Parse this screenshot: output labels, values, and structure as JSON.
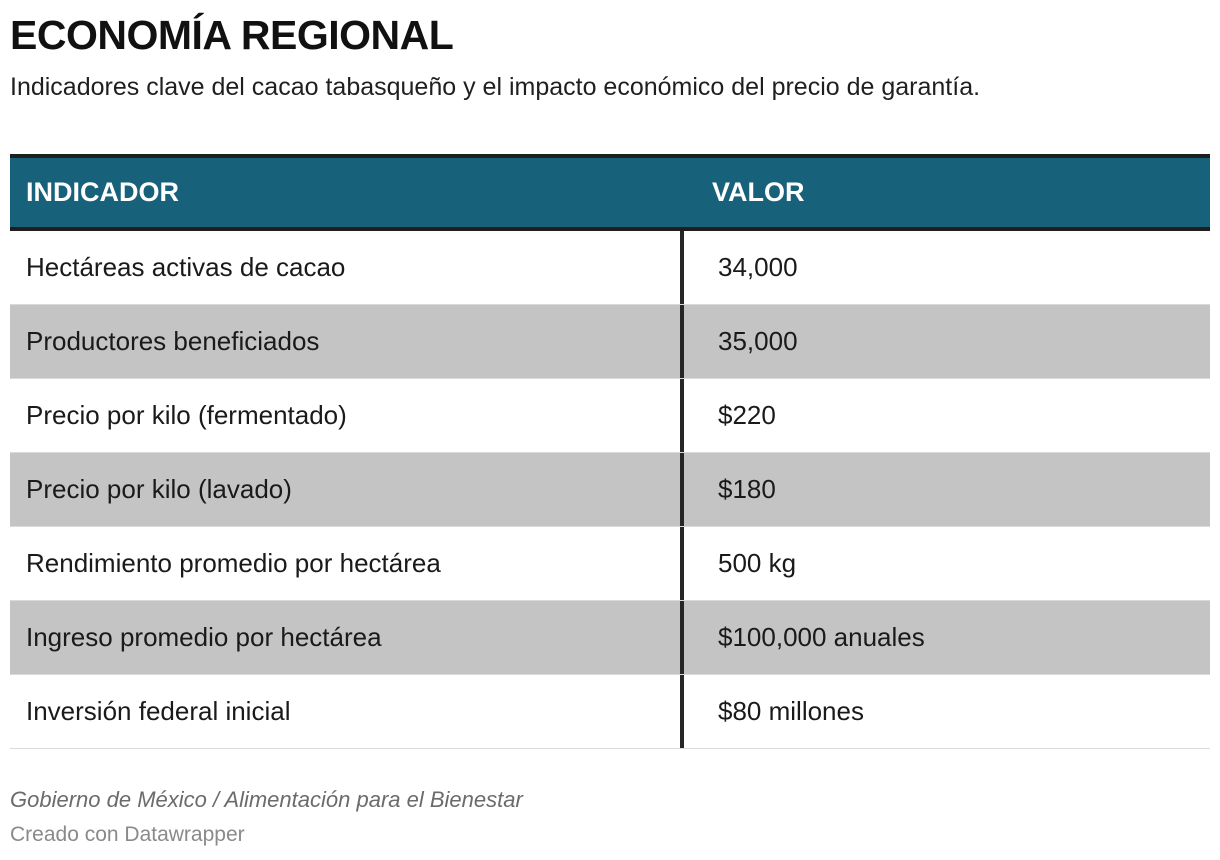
{
  "header": {
    "title": "ECONOMÍA REGIONAL",
    "subtitle": "Indicadores clave del cacao tabasqueño y el impacto económico del precio de garantía."
  },
  "chart_data": {
    "type": "table",
    "columns": [
      "INDICADOR",
      "VALOR"
    ],
    "rows": [
      [
        "Hectáreas activas de cacao",
        "34,000"
      ],
      [
        "Productores beneficiados",
        "35,000"
      ],
      [
        "Precio por kilo (fermentado)",
        "$220"
      ],
      [
        "Precio por kilo (lavado)",
        "$180"
      ],
      [
        "Rendimiento promedio por hectárea",
        "500 kg"
      ],
      [
        "Ingreso promedio por hectárea",
        "$100,000 anuales"
      ],
      [
        "Inversión federal inicial",
        "$80 millones"
      ]
    ],
    "colors": {
      "header_bg": "#17617b",
      "header_text": "#ffffff",
      "stripe": "#c4c4c4"
    }
  },
  "footer": {
    "source": "Gobierno de México / Alimentación para el Bienestar",
    "credit": "Creado con Datawrapper"
  }
}
